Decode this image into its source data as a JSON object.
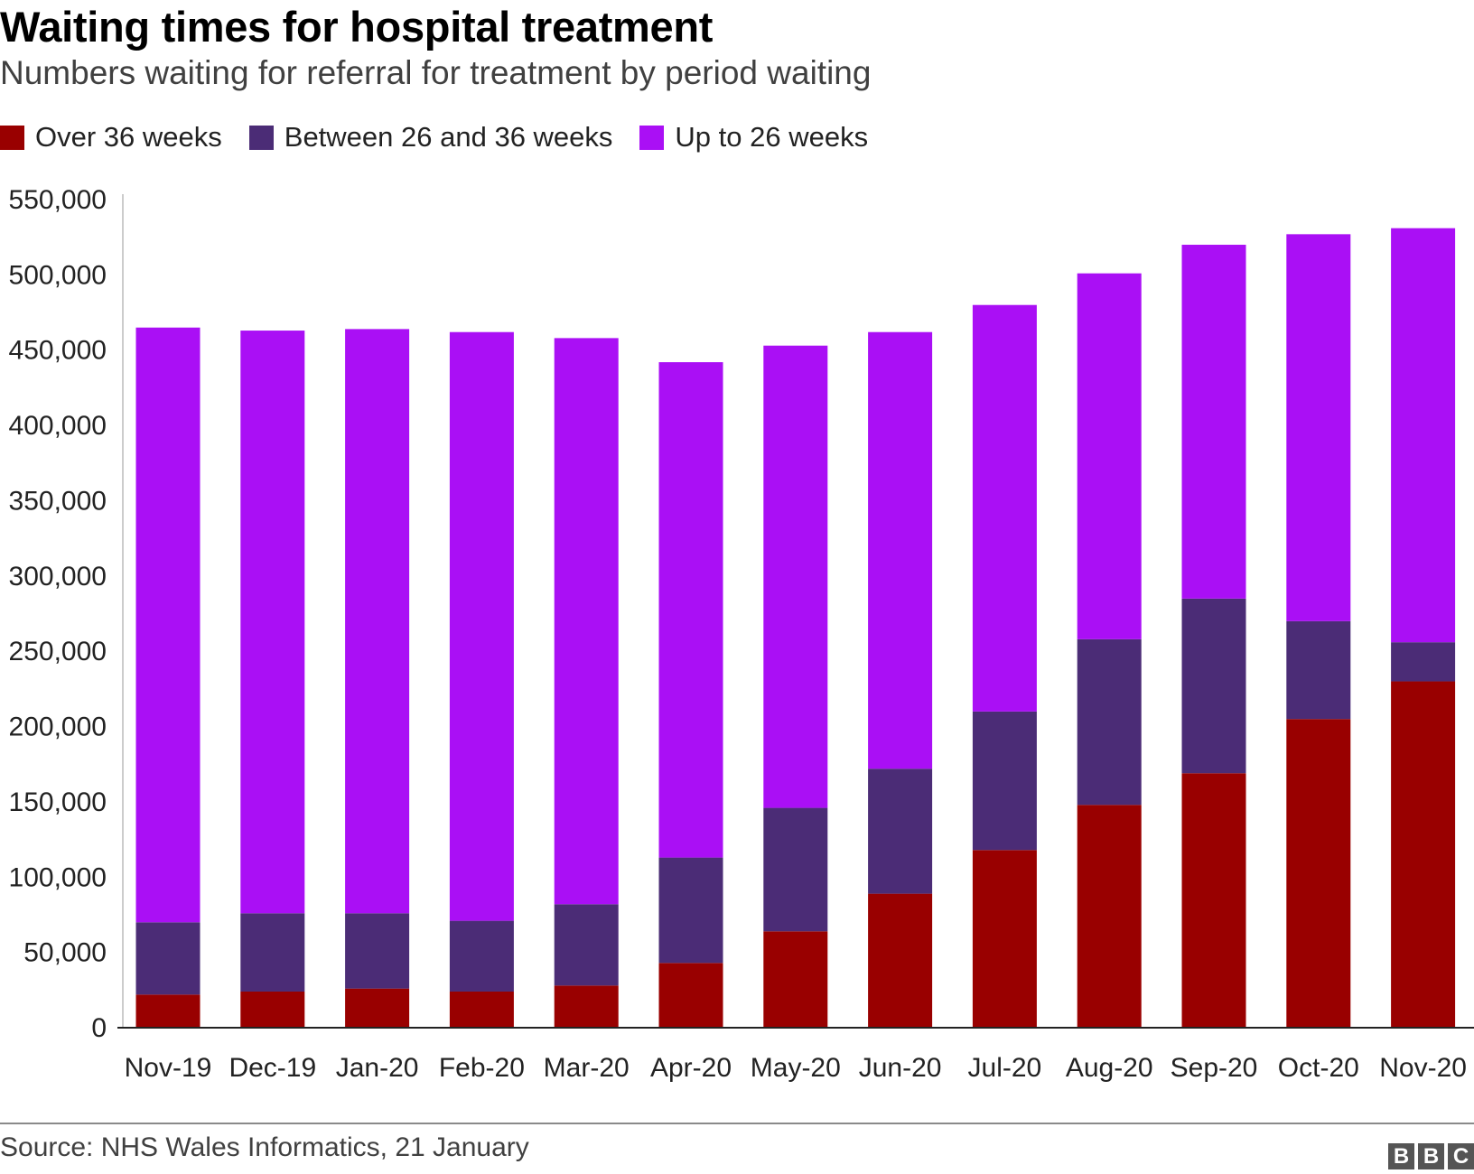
{
  "title": "Waiting times for hospital treatment",
  "subtitle": "Numbers waiting for referral for treatment by period waiting",
  "source": "Source: NHS Wales Informatics, 21 January",
  "logo": [
    "B",
    "B",
    "C"
  ],
  "colors": {
    "over36": "#990000",
    "between26and36": "#4b2c76",
    "upto26": "#aa0ff5",
    "axis": "#222222",
    "gridline": "#cccccc"
  },
  "chart_data": {
    "type": "bar",
    "stacked": true,
    "title": "Waiting times for hospital treatment",
    "subtitle": "Numbers waiting for referral for treatment by period waiting",
    "xlabel": "",
    "ylabel": "",
    "ylim": [
      0,
      550000
    ],
    "yticks": [
      0,
      50000,
      100000,
      150000,
      200000,
      250000,
      300000,
      350000,
      400000,
      450000,
      500000,
      550000
    ],
    "ytick_labels": [
      "0",
      "50,000",
      "100,000",
      "150,000",
      "200,000",
      "250,000",
      "300,000",
      "350,000",
      "400,000",
      "450,000",
      "500,000",
      "550,000"
    ],
    "legend_position": "top-left",
    "categories": [
      "Nov-19",
      "Dec-19",
      "Jan-20",
      "Feb-20",
      "Mar-20",
      "Apr-20",
      "May-20",
      "Jun-20",
      "Jul-20",
      "Aug-20",
      "Sep-20",
      "Oct-20",
      "Nov-20"
    ],
    "series": [
      {
        "name": "Over 36 weeks",
        "color": "#990000",
        "values": [
          22000,
          24000,
          26000,
          24000,
          28000,
          43000,
          64000,
          89000,
          118000,
          148000,
          169000,
          205000,
          230000
        ]
      },
      {
        "name": "Between 26 and 36 weeks",
        "color": "#4b2c76",
        "values": [
          48000,
          52000,
          50000,
          47000,
          54000,
          70000,
          82000,
          83000,
          92000,
          110000,
          116000,
          65000,
          26000
        ]
      },
      {
        "name": "Up to 26 weeks",
        "color": "#aa0ff5",
        "values": [
          395000,
          387000,
          388000,
          391000,
          376000,
          329000,
          307000,
          290000,
          270000,
          243000,
          235000,
          257000,
          275000
        ]
      }
    ]
  }
}
